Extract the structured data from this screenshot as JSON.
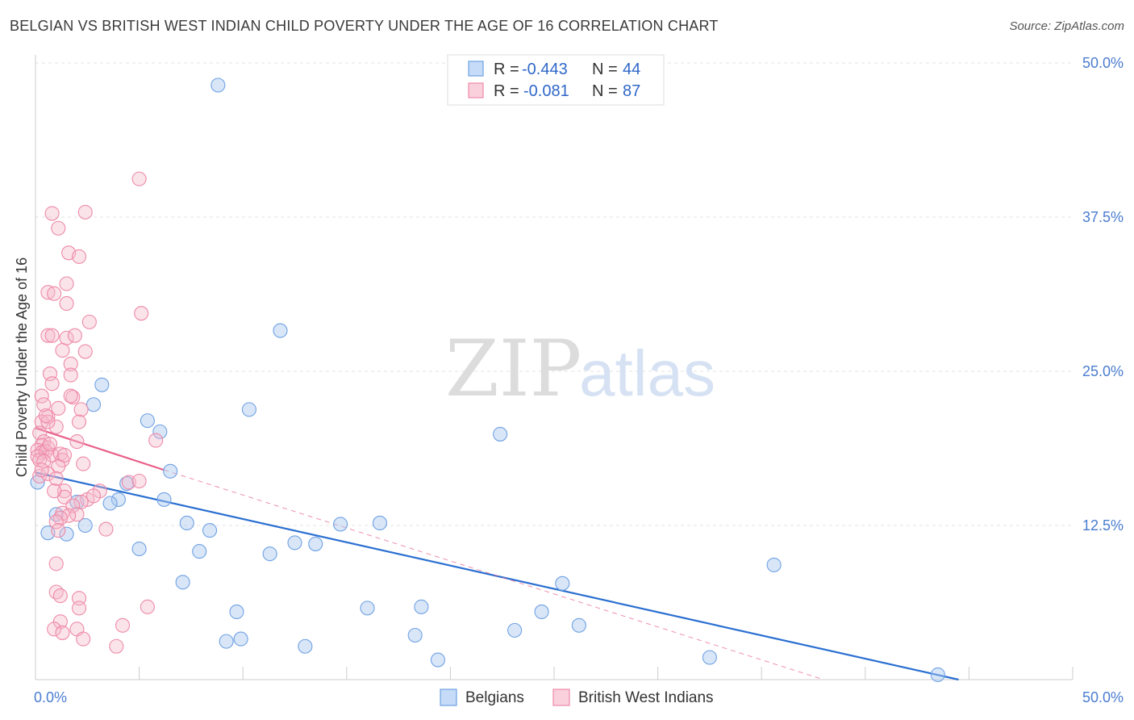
{
  "header": {
    "title": "BELGIAN VS BRITISH WEST INDIAN CHILD POVERTY UNDER THE AGE OF 16 CORRELATION CHART",
    "source": "Source: ZipAtlas.com"
  },
  "watermark": {
    "zip": "ZIP",
    "atlas": "atlas"
  },
  "legend_top": {
    "rows": [
      {
        "r_label": "R = ",
        "r_value": "-0.443",
        "n_label": "N = ",
        "n_value": "44",
        "color": "#a8c8f0"
      },
      {
        "r_label": "R = ",
        "r_value": "-0.081",
        "n_label": "N = ",
        "n_value": "87",
        "color": "#f5b8cb"
      }
    ]
  },
  "legend_bottom": {
    "items": [
      {
        "label": "Belgians",
        "color": "#a8c8f0"
      },
      {
        "label": "British West Indians",
        "color": "#f5b8cb"
      }
    ]
  },
  "chart_data": {
    "type": "scatter",
    "title": "BELGIAN VS BRITISH WEST INDIAN CHILD POVERTY UNDER THE AGE OF 16 CORRELATION CHART",
    "xlabel": "",
    "ylabel": "Child Poverty Under the Age of 16",
    "xlim": [
      0,
      50
    ],
    "ylim": [
      0,
      50
    ],
    "x_tick_labels": [
      "0.0%",
      "50.0%"
    ],
    "y_ticks": [
      12.5,
      25.0,
      37.5,
      50.0
    ],
    "y_tick_labels": [
      "12.5%",
      "25.0%",
      "37.5%",
      "50.0%"
    ],
    "grid": true,
    "legend_position": "top-center",
    "colors": {
      "Belgians": "#6fa1e3",
      "British West Indians": "#ee8aa8",
      "blue_line": "#2a6fd1",
      "pink_line": "#e8608a"
    },
    "series": [
      {
        "name": "Belgians",
        "points": [
          [
            8.8,
            48.2
          ],
          [
            11.8,
            28.3
          ],
          [
            3.2,
            23.9
          ],
          [
            2.8,
            22.3
          ],
          [
            10.3,
            21.9
          ],
          [
            5.4,
            21.0
          ],
          [
            6.0,
            20.1
          ],
          [
            22.4,
            19.9
          ],
          [
            6.5,
            16.9
          ],
          [
            4.4,
            15.9
          ],
          [
            4.0,
            14.6
          ],
          [
            3.6,
            14.3
          ],
          [
            6.2,
            14.6
          ],
          [
            2.0,
            14.4
          ],
          [
            1.0,
            13.4
          ],
          [
            2.4,
            12.5
          ],
          [
            7.3,
            12.7
          ],
          [
            8.4,
            12.1
          ],
          [
            14.7,
            12.6
          ],
          [
            16.6,
            12.7
          ],
          [
            0.6,
            11.9
          ],
          [
            1.5,
            11.8
          ],
          [
            12.5,
            11.1
          ],
          [
            13.5,
            11.0
          ],
          [
            5.0,
            10.6
          ],
          [
            7.9,
            10.4
          ],
          [
            11.3,
            10.2
          ],
          [
            35.6,
            9.3
          ],
          [
            7.1,
            7.9
          ],
          [
            25.4,
            7.8
          ],
          [
            9.7,
            5.5
          ],
          [
            16.0,
            5.8
          ],
          [
            18.6,
            5.9
          ],
          [
            24.4,
            5.5
          ],
          [
            26.2,
            4.4
          ],
          [
            23.1,
            4.0
          ],
          [
            18.3,
            3.6
          ],
          [
            9.2,
            3.1
          ],
          [
            9.9,
            3.3
          ],
          [
            13.0,
            2.7
          ],
          [
            19.4,
            1.6
          ],
          [
            32.5,
            1.8
          ],
          [
            43.5,
            0.4
          ],
          [
            0.1,
            16.0
          ]
        ]
      },
      {
        "name": "British West Indians",
        "points": [
          [
            5.0,
            40.6
          ],
          [
            0.8,
            37.8
          ],
          [
            2.4,
            37.9
          ],
          [
            1.1,
            36.6
          ],
          [
            1.6,
            34.6
          ],
          [
            2.1,
            34.3
          ],
          [
            1.5,
            32.1
          ],
          [
            0.6,
            31.4
          ],
          [
            0.9,
            31.3
          ],
          [
            1.5,
            30.5
          ],
          [
            5.1,
            29.7
          ],
          [
            2.6,
            29.0
          ],
          [
            0.6,
            27.9
          ],
          [
            0.8,
            27.9
          ],
          [
            1.5,
            27.7
          ],
          [
            1.9,
            27.9
          ],
          [
            1.3,
            26.7
          ],
          [
            2.4,
            26.6
          ],
          [
            1.7,
            25.6
          ],
          [
            0.7,
            24.8
          ],
          [
            1.7,
            24.7
          ],
          [
            0.8,
            24.0
          ],
          [
            0.3,
            23.0
          ],
          [
            1.8,
            22.9
          ],
          [
            0.4,
            22.3
          ],
          [
            1.1,
            22.0
          ],
          [
            2.2,
            21.9
          ],
          [
            0.6,
            21.3
          ],
          [
            0.3,
            20.9
          ],
          [
            1.0,
            20.5
          ],
          [
            0.2,
            20.0
          ],
          [
            0.4,
            19.3
          ],
          [
            2.0,
            19.3
          ],
          [
            5.8,
            19.4
          ],
          [
            0.3,
            19.0
          ],
          [
            0.6,
            18.8
          ],
          [
            0.1,
            18.6
          ],
          [
            0.3,
            18.4
          ],
          [
            0.5,
            18.5
          ],
          [
            0.1,
            18.1
          ],
          [
            0.8,
            18.2
          ],
          [
            1.2,
            18.3
          ],
          [
            0.2,
            17.8
          ],
          [
            0.4,
            17.7
          ],
          [
            1.3,
            17.8
          ],
          [
            1.1,
            17.3
          ],
          [
            2.3,
            17.5
          ],
          [
            0.2,
            16.5
          ],
          [
            0.6,
            16.7
          ],
          [
            4.5,
            16.0
          ],
          [
            5.0,
            16.1
          ],
          [
            1.4,
            15.3
          ],
          [
            3.1,
            15.3
          ],
          [
            2.5,
            14.6
          ],
          [
            2.8,
            14.9
          ],
          [
            1.4,
            14.8
          ],
          [
            2.2,
            14.4
          ],
          [
            1.8,
            14.1
          ],
          [
            1.3,
            13.5
          ],
          [
            2.0,
            13.4
          ],
          [
            1.6,
            13.3
          ],
          [
            1.2,
            13.1
          ],
          [
            1.0,
            12.8
          ],
          [
            3.4,
            12.2
          ],
          [
            1.1,
            12.1
          ],
          [
            1.0,
            9.4
          ],
          [
            1.0,
            7.1
          ],
          [
            1.2,
            6.8
          ],
          [
            2.1,
            6.6
          ],
          [
            5.4,
            5.9
          ],
          [
            2.1,
            5.8
          ],
          [
            4.2,
            4.4
          ],
          [
            1.2,
            4.7
          ],
          [
            0.9,
            4.1
          ],
          [
            2.0,
            4.1
          ],
          [
            1.3,
            3.8
          ],
          [
            2.3,
            3.3
          ],
          [
            3.9,
            2.7
          ],
          [
            0.6,
            20.9
          ],
          [
            1.4,
            18.2
          ],
          [
            1.7,
            23.0
          ],
          [
            0.7,
            19.1
          ],
          [
            0.5,
            21.4
          ],
          [
            1.0,
            16.3
          ],
          [
            2.1,
            20.9
          ],
          [
            0.3,
            17.0
          ],
          [
            0.9,
            15.3
          ]
        ]
      }
    ],
    "trend_lines": [
      {
        "series": "Belgians",
        "from": [
          0,
          16.8
        ],
        "to": [
          44.5,
          0
        ],
        "style": "solid"
      },
      {
        "series": "British West Indians",
        "from": [
          0,
          20.4
        ],
        "to": [
          6.2,
          17.0
        ],
        "style": "solid"
      },
      {
        "series": "British West Indians",
        "from": [
          6.2,
          17.0
        ],
        "to": [
          38,
          0
        ],
        "style": "dashed"
      }
    ]
  }
}
